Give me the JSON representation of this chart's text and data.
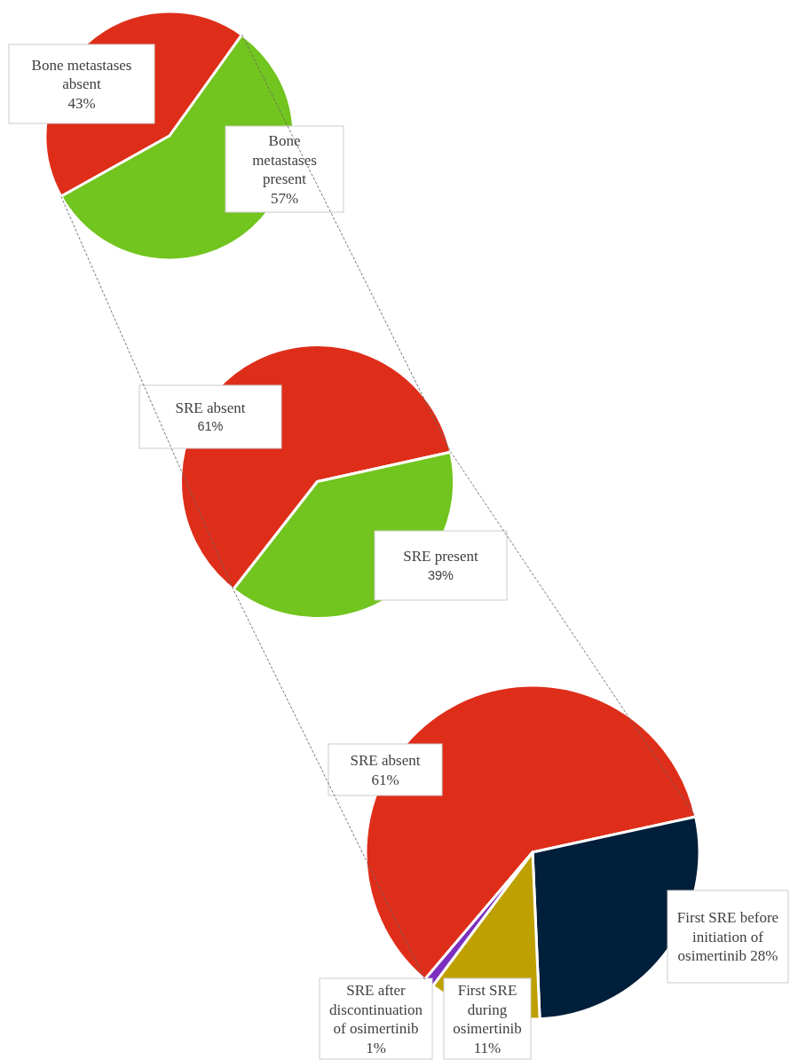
{
  "chart_data": [
    {
      "type": "pie",
      "categories": [
        "Bone metastases absent",
        "Bone metastases present"
      ],
      "values": [
        43,
        57
      ],
      "colors": [
        "#de2e1a",
        "#72c41e"
      ],
      "value_labels": [
        "43%",
        "57%"
      ]
    },
    {
      "type": "pie",
      "categories": [
        "SRE absent",
        "SRE present"
      ],
      "values": [
        61,
        39
      ],
      "colors": [
        "#de2e1a",
        "#72c41e"
      ],
      "value_labels": [
        "61%",
        "39%"
      ]
    },
    {
      "type": "pie",
      "categories": [
        "SRE absent",
        "First SRE before initiation of osimertinib",
        "First SRE during osimertinib",
        "SRE after discontinuation of osimertinib"
      ],
      "values": [
        61,
        28,
        11,
        1
      ],
      "colors": [
        "#de2e1a",
        "#001f3a",
        "#bea000",
        "#7b2fbf"
      ],
      "value_labels": [
        "61%",
        "28%",
        "11%",
        "1%"
      ]
    }
  ]
}
